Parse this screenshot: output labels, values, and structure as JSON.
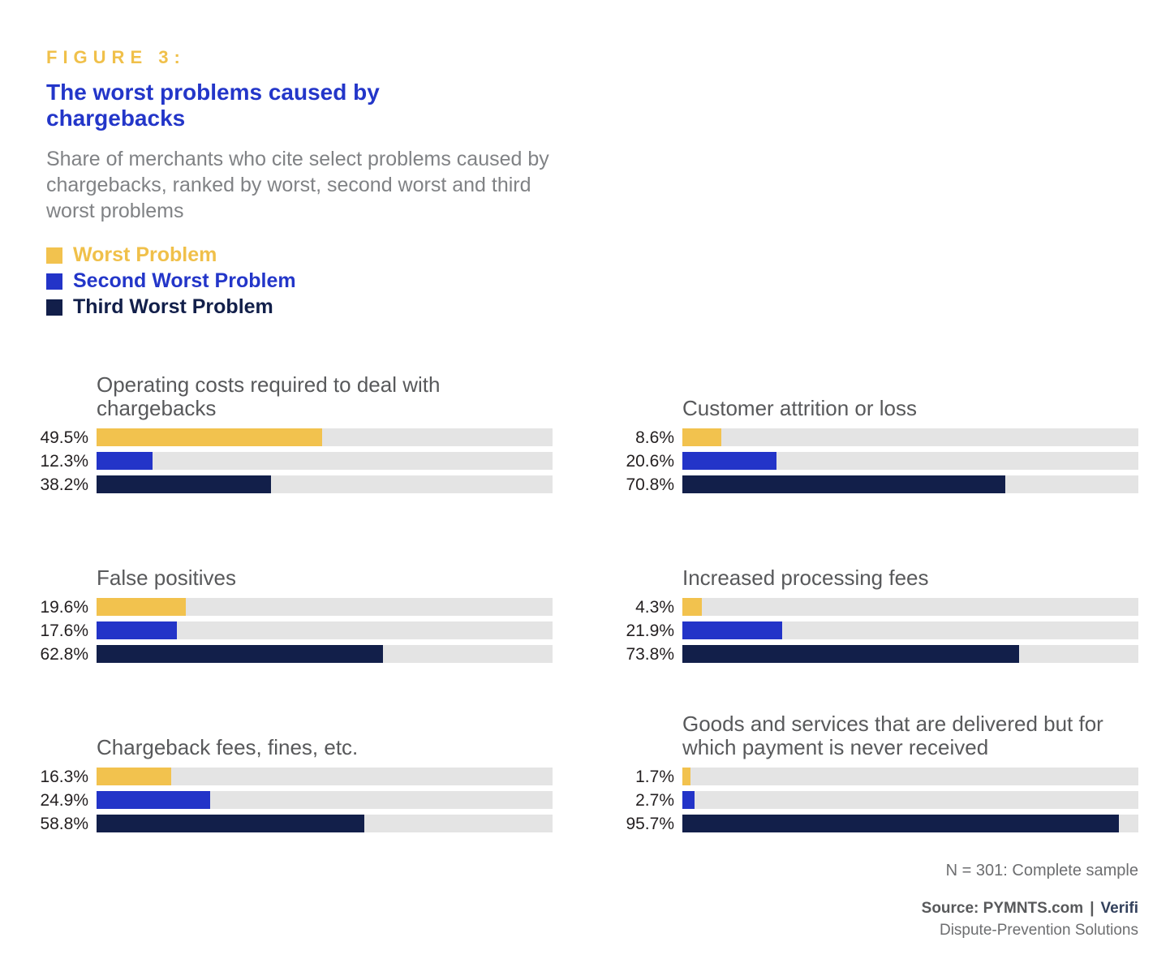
{
  "figure_label": "FIGURE 3:",
  "title": "The worst problems caused by chargebacks",
  "subtitle": "Share of merchants who cite select problems caused by chargebacks, ranked by worst, second worst and third worst problems",
  "chart_data": {
    "type": "bar",
    "orientation": "horizontal",
    "unit": "percent",
    "xlim": [
      0,
      100
    ],
    "grid": false,
    "legend_position": "top-left",
    "series": [
      {
        "name": "Worst Problem",
        "color": "#f2c24e"
      },
      {
        "name": "Second Worst Problem",
        "color": "#2334c8"
      },
      {
        "name": "Third Worst Problem",
        "color": "#121f4a"
      }
    ],
    "track_color": "#e4e4e4",
    "groups": [
      {
        "title": "Operating costs required to deal with chargebacks",
        "values": [
          49.5,
          12.3,
          38.2
        ],
        "display": [
          "49.5%",
          "12.3%",
          "38.2%"
        ],
        "column": "left",
        "row": 1
      },
      {
        "title": "False positives",
        "values": [
          19.6,
          17.6,
          62.8
        ],
        "display": [
          "19.6%",
          "17.6%",
          "62.8%"
        ],
        "column": "left",
        "row": 2
      },
      {
        "title": "Chargeback fees, fines, etc.",
        "values": [
          16.3,
          24.9,
          58.8
        ],
        "display": [
          "16.3%",
          "24.9%",
          "58.8%"
        ],
        "column": "left",
        "row": 3
      },
      {
        "title": "Customer attrition or loss",
        "values": [
          8.6,
          20.6,
          70.8
        ],
        "display": [
          "8.6%",
          "20.6%",
          "70.8%"
        ],
        "column": "right",
        "row": 1
      },
      {
        "title": "Increased processing fees",
        "values": [
          4.3,
          21.9,
          73.8
        ],
        "display": [
          "4.3%",
          "21.9%",
          "73.8%"
        ],
        "column": "right",
        "row": 2
      },
      {
        "title": "Goods and services that are delivered but for which payment is never received",
        "values": [
          1.7,
          2.7,
          95.7
        ],
        "display": [
          "1.7%",
          "2.7%",
          "95.7%"
        ],
        "column": "right",
        "row": 3
      }
    ]
  },
  "footer": {
    "sample_note": "N = 301: Complete sample",
    "source_label": "Source: PYMNTS.com",
    "source_separator": "|",
    "source_brand": "Verifi",
    "source_subtitle": "Dispute-Prevention Solutions"
  },
  "colors": {
    "figure_label": "#f0c04a",
    "title": "#2336c9",
    "subtitle": "#808285",
    "chart_title": "#58595b",
    "value_label": "#231f20",
    "track": "#e4e4e4",
    "worst": "#f2c24e",
    "second_worst": "#2334c8",
    "third_worst": "#121f4a"
  }
}
